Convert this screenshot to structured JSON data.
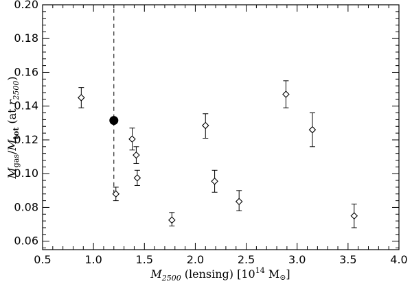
{
  "chart_data": {
    "type": "scatter",
    "xlabel": {
      "main": "M",
      "sub": "2500",
      "middle": " (lensing) [10",
      "sup": "14",
      "end": " M",
      "sun": "⊙",
      "close": "]"
    },
    "ylabel": {
      "m1": "M",
      "sub1": "gas",
      "slash": "/",
      "m2": "M",
      "sub2": "tot",
      "middle": " (at ",
      "r": "r",
      "sub3": "2500",
      "close": ")"
    },
    "xlim": [
      0.5,
      4.0
    ],
    "ylim": [
      0.055,
      0.2
    ],
    "xticks": [
      "0.5",
      "1.0",
      "1.5",
      "2.0",
      "2.5",
      "3.0",
      "3.5",
      "4.0"
    ],
    "xtick_values": [
      0.5,
      1.0,
      1.5,
      2.0,
      2.5,
      3.0,
      3.5,
      4.0
    ],
    "yticks": [
      "0.06",
      "0.08",
      "0.10",
      "0.12",
      "0.14",
      "0.16",
      "0.18",
      "0.20"
    ],
    "ytick_values": [
      0.06,
      0.08,
      0.1,
      0.12,
      0.14,
      0.16,
      0.18,
      0.2
    ],
    "points": [
      {
        "x": 0.88,
        "y": 0.145,
        "yerr_low": 0.139,
        "yerr_high": 0.151
      },
      {
        "x": 1.22,
        "y": 0.088,
        "yerr_low": 0.084,
        "yerr_high": 0.092
      },
      {
        "x": 1.38,
        "y": 0.1205,
        "yerr_low": 0.114,
        "yerr_high": 0.127
      },
      {
        "x": 1.42,
        "y": 0.111,
        "yerr_low": 0.106,
        "yerr_high": 0.116
      },
      {
        "x": 1.43,
        "y": 0.0975,
        "yerr_low": 0.093,
        "yerr_high": 0.102
      },
      {
        "x": 1.77,
        "y": 0.0725,
        "yerr_low": 0.069,
        "yerr_high": 0.077
      },
      {
        "x": 2.1,
        "y": 0.1285,
        "yerr_low": 0.121,
        "yerr_high": 0.1355
      },
      {
        "x": 2.19,
        "y": 0.0955,
        "yerr_low": 0.089,
        "yerr_high": 0.102
      },
      {
        "x": 2.43,
        "y": 0.0835,
        "yerr_low": 0.078,
        "yerr_high": 0.09
      },
      {
        "x": 2.89,
        "y": 0.147,
        "yerr_low": 0.139,
        "yerr_high": 0.155
      },
      {
        "x": 3.15,
        "y": 0.126,
        "yerr_low": 0.116,
        "yerr_high": 0.136
      },
      {
        "x": 3.56,
        "y": 0.075,
        "yerr_low": 0.068,
        "yerr_high": 0.082
      }
    ],
    "highlight_point": {
      "x": 1.2,
      "y": 0.1315
    },
    "dashed_line": {
      "x": 1.2,
      "y_from": 0.088,
      "y_to": 0.2
    },
    "grid": false,
    "legend": "none"
  }
}
